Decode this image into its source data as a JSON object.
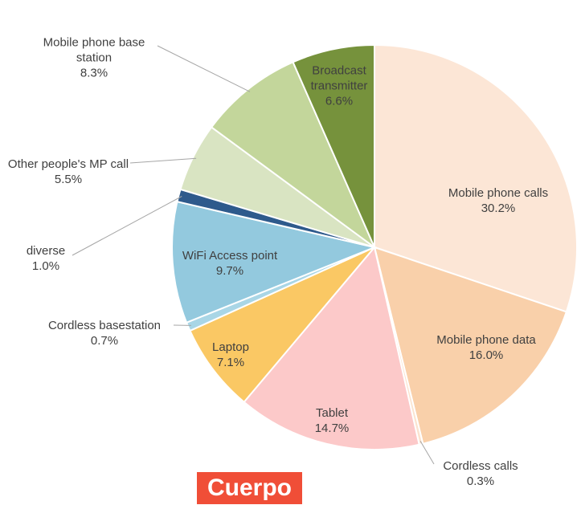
{
  "chart_data": {
    "type": "pie",
    "categories": [
      "Mobile phone calls",
      "Mobile phone data",
      "Cordless calls",
      "Tablet",
      "Laptop",
      "Cordless basestation",
      "WiFi Access point",
      "diverse",
      "Other people's MP call",
      "Mobile phone base station",
      "Broadcast transmitter"
    ],
    "values": [
      30.2,
      16.0,
      0.3,
      14.7,
      7.1,
      0.7,
      9.7,
      1.0,
      5.5,
      8.3,
      6.6
    ],
    "value_labels": [
      "30.2%",
      "16.0%",
      "0.3%",
      "14.7%",
      "7.1%",
      "0.7%",
      "9.7%",
      "1.0%",
      "5.5%",
      "8.3%",
      "6.6%"
    ],
    "colors": [
      "#fce6d6",
      "#f9d0aa",
      "#fbe3cf",
      "#fcc9c9",
      "#fac864",
      "#a9d6e6",
      "#93c9de",
      "#2e5a8c",
      "#d9e4c2",
      "#c3d69b",
      "#76923c"
    ]
  },
  "overlay_label": "Cuerpo"
}
